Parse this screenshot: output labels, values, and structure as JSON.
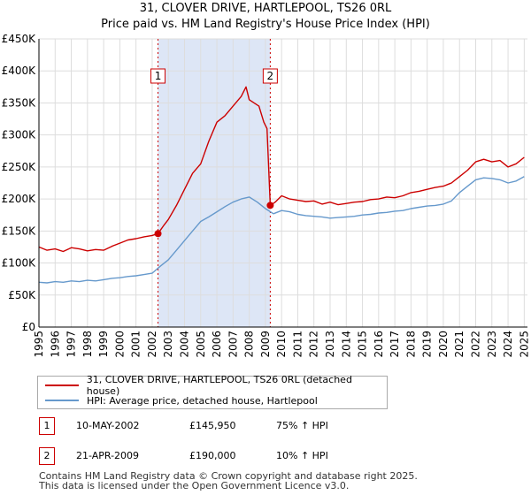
{
  "title_line1": "31, CLOVER DRIVE, HARTLEPOOL, TS26 0RL",
  "title_line2": "Price paid vs. HM Land Registry's House Price Index (HPI)",
  "colors": {
    "property": "#cc0000",
    "hpi": "#6699cc",
    "shade": "#dde6f6",
    "grid": "#dddddd"
  },
  "legend": {
    "property_label": "31, CLOVER DRIVE, HARTLEPOOL, TS26 0RL (detached house)",
    "hpi_label": "HPI: Average price, detached house, Hartlepool"
  },
  "sales": [
    {
      "num": "1",
      "date": "10-MAY-2002",
      "price": "£145,950",
      "hpi_change": "75% ↑ HPI"
    },
    {
      "num": "2",
      "date": "21-APR-2009",
      "price": "£190,000",
      "hpi_change": "10% ↑ HPI"
    }
  ],
  "footer": {
    "line1": "Contains HM Land Registry data © Crown copyright and database right 2025.",
    "line2": "This data is licensed under the Open Government Licence v3.0."
  },
  "chart_data": {
    "type": "line",
    "title": "31, CLOVER DRIVE, HARTLEPOOL, TS26 0RL",
    "subtitle": "Price paid vs. HM Land Registry's House Price Index (HPI)",
    "xlabel": "",
    "ylabel": "",
    "xlim": [
      1995,
      2025.2
    ],
    "ylim": [
      0,
      450000
    ],
    "y_ticks": [
      0,
      50000,
      100000,
      150000,
      200000,
      250000,
      300000,
      350000,
      400000,
      450000
    ],
    "y_tick_labels": [
      "£0",
      "£50K",
      "£100K",
      "£150K",
      "£200K",
      "£250K",
      "£300K",
      "£350K",
      "£400K",
      "£450K"
    ],
    "x_ticks": [
      1995,
      1996,
      1997,
      1998,
      1999,
      2000,
      2001,
      2002,
      2003,
      2004,
      2005,
      2006,
      2007,
      2008,
      2009,
      2010,
      2011,
      2012,
      2013,
      2014,
      2015,
      2016,
      2017,
      2018,
      2019,
      2020,
      2021,
      2022,
      2023,
      2024,
      2025
    ],
    "grid": true,
    "shaded_region": [
      2002.36,
      2009.3
    ],
    "series": [
      {
        "name": "31, CLOVER DRIVE, HARTLEPOOL, TS26 0RL (detached house)",
        "x": [
          1995,
          1995.5,
          1996,
          1996.5,
          1997,
          1997.5,
          1998,
          1998.5,
          1999,
          1999.5,
          2000,
          2000.5,
          2001,
          2001.5,
          2002,
          2002.36,
          2002.7,
          2003,
          2003.5,
          2004,
          2004.5,
          2005,
          2005.5,
          2006,
          2006.5,
          2007,
          2007.5,
          2007.8,
          2008,
          2008.3,
          2008.6,
          2008.9,
          2009.1,
          2009.3,
          2009.6,
          2010,
          2010.5,
          2011,
          2011.5,
          2012,
          2012.5,
          2013,
          2013.5,
          2014,
          2014.5,
          2015,
          2015.5,
          2016,
          2016.5,
          2017,
          2017.5,
          2018,
          2018.5,
          2019,
          2019.5,
          2020,
          2020.5,
          2021,
          2021.5,
          2022,
          2022.5,
          2023,
          2023.5,
          2024,
          2024.5,
          2025
        ],
        "values": [
          125000,
          120000,
          122000,
          118000,
          124000,
          122000,
          119000,
          121000,
          120000,
          126000,
          131000,
          136000,
          138000,
          141000,
          143000,
          145950,
          158000,
          168000,
          190000,
          215000,
          240000,
          255000,
          290000,
          320000,
          330000,
          345000,
          360000,
          375000,
          355000,
          350000,
          345000,
          320000,
          310000,
          190000,
          195000,
          205000,
          200000,
          198000,
          196000,
          197000,
          192000,
          195000,
          191000,
          193000,
          195000,
          196000,
          199000,
          200000,
          203000,
          202000,
          205000,
          210000,
          212000,
          215000,
          218000,
          220000,
          225000,
          235000,
          245000,
          258000,
          262000,
          258000,
          260000,
          250000,
          255000,
          265000
        ]
      },
      {
        "name": "HPI: Average price, detached house, Hartlepool",
        "x": [
          1995,
          1995.5,
          1996,
          1996.5,
          1997,
          1997.5,
          1998,
          1998.5,
          1999,
          1999.5,
          2000,
          2000.5,
          2001,
          2001.5,
          2002,
          2002.5,
          2003,
          2003.5,
          2004,
          2004.5,
          2005,
          2005.5,
          2006,
          2006.5,
          2007,
          2007.5,
          2008,
          2008.5,
          2009,
          2009.5,
          2010,
          2010.5,
          2011,
          2011.5,
          2012,
          2012.5,
          2013,
          2013.5,
          2014,
          2014.5,
          2015,
          2015.5,
          2016,
          2016.5,
          2017,
          2017.5,
          2018,
          2018.5,
          2019,
          2019.5,
          2020,
          2020.5,
          2021,
          2021.5,
          2022,
          2022.5,
          2023,
          2023.5,
          2024,
          2024.5,
          2025
        ],
        "values": [
          70000,
          69000,
          71000,
          70000,
          72000,
          71000,
          73000,
          72000,
          74000,
          76000,
          77000,
          79000,
          80000,
          82000,
          84000,
          95000,
          105000,
          120000,
          135000,
          150000,
          165000,
          172000,
          180000,
          188000,
          195000,
          200000,
          203000,
          195000,
          185000,
          177000,
          182000,
          180000,
          176000,
          174000,
          173000,
          172000,
          170000,
          171000,
          172000,
          173000,
          175000,
          176000,
          178000,
          179000,
          181000,
          182000,
          185000,
          187000,
          189000,
          190000,
          192000,
          197000,
          210000,
          220000,
          230000,
          233000,
          232000,
          230000,
          225000,
          228000,
          235000
        ]
      }
    ],
    "markers": [
      {
        "label": "1",
        "x": 2002.36,
        "y": 145950
      },
      {
        "label": "2",
        "x": 2009.3,
        "y": 190000
      }
    ]
  }
}
